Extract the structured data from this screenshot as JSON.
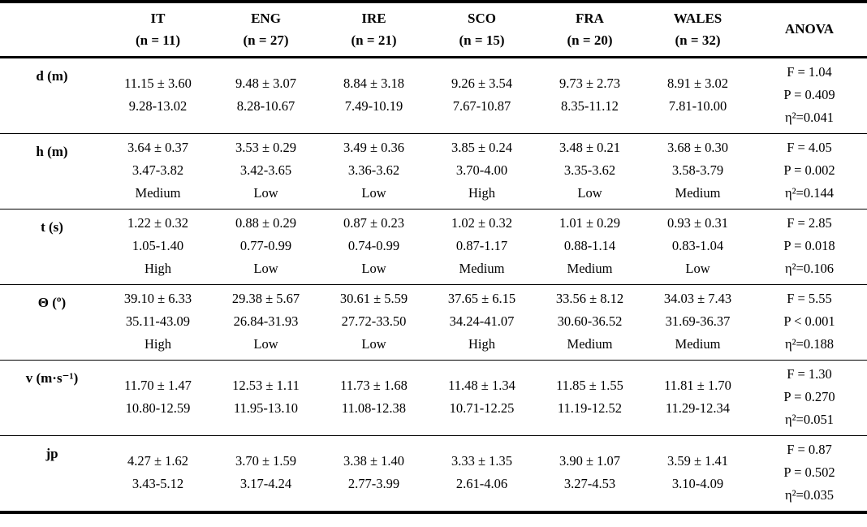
{
  "table": {
    "anova_header": "ANOVA",
    "columns": [
      {
        "label": "IT",
        "n": "(n = 11)"
      },
      {
        "label": "ENG",
        "n": "(n = 27)"
      },
      {
        "label": "IRE",
        "n": "(n = 21)"
      },
      {
        "label": "SCO",
        "n": "(n = 15)"
      },
      {
        "label": "FRA",
        "n": "(n = 20)"
      },
      {
        "label": "WALES",
        "n": "(n = 32)"
      }
    ],
    "rows": [
      {
        "variable": "d (m)",
        "cells": [
          {
            "mean": "11.15 ± 3.60",
            "range": "9.28-13.02"
          },
          {
            "mean": "9.48 ± 3.07",
            "range": "8.28-10.67"
          },
          {
            "mean": "8.84 ± 3.18",
            "range": "7.49-10.19"
          },
          {
            "mean": "9.26 ± 3.54",
            "range": "7.67-10.87"
          },
          {
            "mean": "9.73 ± 2.73",
            "range": "8.35-11.12"
          },
          {
            "mean": "8.91 ± 3.02",
            "range": "7.81-10.00"
          }
        ],
        "anova": {
          "f": "F = 1.04",
          "p": "P = 0.409",
          "eta": "η²=0.041"
        }
      },
      {
        "variable": "h (m)",
        "cells": [
          {
            "mean": "3.64 ± 0.37",
            "range": "3.47-3.82",
            "category": "Medium"
          },
          {
            "mean": "3.53 ± 0.29",
            "range": "3.42-3.65",
            "category": "Low"
          },
          {
            "mean": "3.49 ± 0.36",
            "range": "3.36-3.62",
            "category": "Low"
          },
          {
            "mean": "3.85 ± 0.24",
            "range": "3.70-4.00",
            "category": "High"
          },
          {
            "mean": "3.48 ± 0.21",
            "range": "3.35-3.62",
            "category": "Low"
          },
          {
            "mean": "3.68 ± 0.30",
            "range": "3.58-3.79",
            "category": "Medium"
          }
        ],
        "anova": {
          "f": "F = 4.05",
          "p": "P = 0.002",
          "eta": "η²=0.144"
        }
      },
      {
        "variable": "t (s)",
        "cells": [
          {
            "mean": "1.22 ± 0.32",
            "range": "1.05-1.40",
            "category": "High"
          },
          {
            "mean": "0.88 ± 0.29",
            "range": "0.77-0.99",
            "category": "Low"
          },
          {
            "mean": "0.87 ± 0.23",
            "range": "0.74-0.99",
            "category": "Low"
          },
          {
            "mean": "1.02 ± 0.32",
            "range": "0.87-1.17",
            "category": "Medium"
          },
          {
            "mean": "1.01 ± 0.29",
            "range": "0.88-1.14",
            "category": "Medium"
          },
          {
            "mean": "0.93 ± 0.31",
            "range": "0.83-1.04",
            "category": "Low"
          }
        ],
        "anova": {
          "f": "F = 2.85",
          "p": "P = 0.018",
          "eta": "η²=0.106"
        }
      },
      {
        "variable": "Θ (º)",
        "cells": [
          {
            "mean": "39.10 ± 6.33",
            "range": "35.11-43.09",
            "category": "High"
          },
          {
            "mean": "29.38 ± 5.67",
            "range": "26.84-31.93",
            "category": "Low"
          },
          {
            "mean": "30.61 ± 5.59",
            "range": "27.72-33.50",
            "category": "Low"
          },
          {
            "mean": "37.65 ± 6.15",
            "range": "34.24-41.07",
            "category": "High"
          },
          {
            "mean": "33.56 ± 8.12",
            "range": "30.60-36.52",
            "category": "Medium"
          },
          {
            "mean": "34.03 ± 7.43",
            "range": "31.69-36.37",
            "category": "Medium"
          }
        ],
        "anova": {
          "f": "F = 5.55",
          "p": "P < 0.001",
          "eta": "η²=0.188"
        }
      },
      {
        "variable": "v (m·s⁻¹)",
        "cells": [
          {
            "mean": "11.70 ± 1.47",
            "range": "10.80-12.59"
          },
          {
            "mean": "12.53 ± 1.11",
            "range": "11.95-13.10"
          },
          {
            "mean": "11.73 ± 1.68",
            "range": "11.08-12.38"
          },
          {
            "mean": "11.48 ± 1.34",
            "range": "10.71-12.25"
          },
          {
            "mean": "11.85 ± 1.55",
            "range": "11.19-12.52"
          },
          {
            "mean": "11.81 ± 1.70",
            "range": "11.29-12.34"
          }
        ],
        "anova": {
          "f": "F = 1.30",
          "p": "P = 0.270",
          "eta": "η²=0.051"
        }
      },
      {
        "variable": "jp",
        "cells": [
          {
            "mean": "4.27 ± 1.62",
            "range": "3.43-5.12"
          },
          {
            "mean": "3.70 ± 1.59",
            "range": "3.17-4.24"
          },
          {
            "mean": "3.38 ± 1.40",
            "range": "2.77-3.99"
          },
          {
            "mean": "3.33 ± 1.35",
            "range": "2.61-4.06"
          },
          {
            "mean": "3.90 ± 1.07",
            "range": "3.27-4.53"
          },
          {
            "mean": "3.59 ± 1.41",
            "range": "3.10-4.09"
          }
        ],
        "anova": {
          "f": "F = 0.87",
          "p": "P = 0.502",
          "eta": "η²=0.035"
        }
      }
    ]
  },
  "colors": {
    "text": "#000000",
    "background": "#ffffff",
    "rule": "#000000"
  }
}
